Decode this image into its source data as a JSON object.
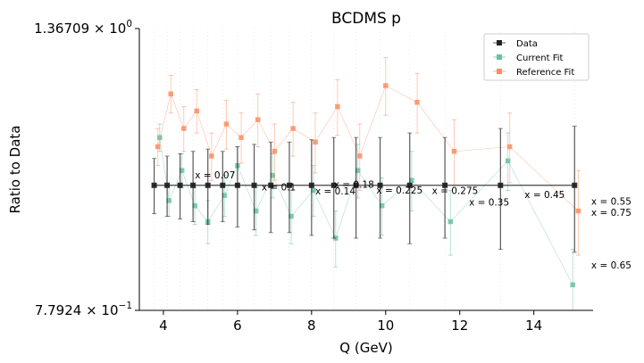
{
  "chart_data": {
    "type": "scatter",
    "title": "BCDMS p",
    "xlabel": "Q (GeV)",
    "ylabel": "Ratio to Data",
    "xscale": "linear",
    "yscale": "log",
    "xlim": [
      3.35,
      15.6
    ],
    "ylim": [
      0.77924,
      1.36709
    ],
    "xticks": [
      4,
      6,
      8,
      10,
      12,
      14
    ],
    "xtick_labels": [
      "4",
      "6",
      "8",
      "10",
      "12",
      "14"
    ],
    "ytick_labels": [
      {
        "value": 1.36709,
        "mantissa": "1.36709",
        "base": "10",
        "exponent": "0"
      },
      {
        "value": 0.77924,
        "mantissa": "7.7924",
        "base": "10",
        "exponent": "−1"
      }
    ],
    "grid": false,
    "legend": {
      "location": "top-right",
      "entries": [
        {
          "label": "Data",
          "color": "#222222"
        },
        {
          "label": "Current Fit",
          "color": "#66c2a5"
        },
        {
          "label": "Reference Fit",
          "color": "#fc8d62"
        }
      ]
    },
    "series": [
      {
        "name": "Data",
        "color": "#222222",
        "x": [
          3.75,
          4.1,
          4.45,
          4.8,
          5.2,
          5.6,
          6.0,
          6.45,
          6.9,
          7.4,
          8.0,
          8.6,
          9.2,
          9.85,
          10.65,
          11.6,
          13.1,
          15.1
        ],
        "y": [
          1.0,
          1.0,
          1.0,
          1.0,
          1.0,
          1.0,
          1.0,
          1.0,
          1.0,
          1.0,
          1.0,
          1.0,
          1.0,
          1.0,
          1.0,
          1.0,
          1.0,
          1.0
        ],
        "yerr": [
          0.055,
          0.06,
          0.065,
          0.07,
          0.075,
          0.07,
          0.08,
          0.085,
          0.09,
          0.09,
          0.095,
          0.1,
          0.1,
          0.1,
          0.11,
          0.1,
          0.12,
          0.125
        ]
      },
      {
        "name": "Current Fit",
        "color": "#66c2a5",
        "x": [
          3.9,
          4.15,
          4.5,
          4.85,
          5.2,
          5.65,
          6.0,
          6.5,
          6.95,
          7.45,
          8.05,
          8.65,
          9.25,
          9.9,
          10.7,
          11.75,
          13.3,
          15.05
        ],
        "y": [
          1.1,
          0.97,
          1.03,
          0.96,
          0.93,
          0.98,
          1.04,
          0.95,
          1.02,
          0.94,
          0.99,
          0.9,
          1.03,
          0.96,
          1.01,
          0.93,
          1.05,
          0.82
        ],
        "yerr": [
          0.03,
          0.03,
          0.035,
          0.035,
          0.04,
          0.04,
          0.04,
          0.045,
          0.045,
          0.05,
          0.05,
          0.05,
          0.055,
          0.055,
          0.06,
          0.06,
          0.06,
          0.06
        ]
      },
      {
        "name": "Reference Fit",
        "color": "#fc8d62",
        "x": [
          3.85,
          4.2,
          4.55,
          4.9,
          5.3,
          5.7,
          6.1,
          6.55,
          7.0,
          7.5,
          8.1,
          8.7,
          9.3,
          10.0,
          10.85,
          11.85,
          13.35,
          15.2
        ],
        "y": [
          1.08,
          1.2,
          1.12,
          1.16,
          1.06,
          1.13,
          1.1,
          1.14,
          1.07,
          1.12,
          1.09,
          1.17,
          1.06,
          1.22,
          1.18,
          1.07,
          1.08,
          0.95
        ],
        "yerr": [
          0.04,
          0.045,
          0.05,
          0.05,
          0.05,
          0.055,
          0.055,
          0.06,
          0.06,
          0.06,
          0.065,
          0.065,
          0.07,
          0.07,
          0.07,
          0.07,
          0.075,
          0.08
        ]
      }
    ],
    "annotations": [
      {
        "text": "x = 0.07",
        "x": 4.85,
        "y": 1.014
      },
      {
        "text": "x = 0.1",
        "x": 6.65,
        "y": 0.99
      },
      {
        "text": "x = 0.14",
        "x": 8.1,
        "y": 0.982
      },
      {
        "text": "x = 0.18",
        "x": 8.6,
        "y": 0.995
      },
      {
        "text": "x = 0.225",
        "x": 9.75,
        "y": 0.984
      },
      {
        "text": "x = 0.275",
        "x": 11.25,
        "y": 0.983
      },
      {
        "text": "x = 0.35",
        "x": 12.25,
        "y": 0.96
      },
      {
        "text": "x = 0.45",
        "x": 13.75,
        "y": 0.975
      },
      {
        "text": "x = 0.55",
        "x": 15.55,
        "y": 0.962
      },
      {
        "text": "x = 0.75",
        "x": 15.55,
        "y": 0.941
      },
      {
        "text": "x = 0.65",
        "x": 15.55,
        "y": 0.847
      }
    ]
  }
}
